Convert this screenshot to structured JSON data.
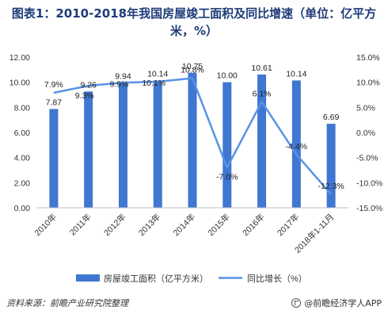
{
  "title": "图表1：2010-2018年我国房屋竣工面积及同比增速（单位：亿平方米，%）",
  "source": "资料来源：前瞻产业研究院整理",
  "brand": "@前瞻经济学人APP",
  "colors": {
    "bar": "#3f77d1",
    "line": "#5a92e6",
    "axis_text": "#333333",
    "title": "#1f3b78"
  },
  "chart_data": {
    "type": "bar",
    "categories": [
      "2010年",
      "2011年",
      "2012年",
      "2013年",
      "2014年",
      "2015年",
      "2016年",
      "2017年",
      "2018年1-11月"
    ],
    "series": [
      {
        "name": "房屋竣工面积（亿平方米）",
        "type": "bar",
        "axis": "left",
        "values": [
          7.87,
          9.26,
          9.94,
          10.14,
          10.75,
          10.0,
          10.61,
          10.14,
          6.69
        ],
        "labels": [
          "7.87",
          "9.26",
          "9.94",
          "10.14",
          "10.75",
          "10.00",
          "10.61",
          "10.14",
          "6.69"
        ]
      },
      {
        "name": "同比增长（%）",
        "type": "line",
        "axis": "right",
        "values": [
          7.9,
          9.3,
          9.9,
          10.1,
          10.8,
          -7.0,
          6.1,
          -4.4,
          -12.3
        ],
        "labels": [
          "7.9%",
          "9.3%",
          "9.9%",
          "10.1%",
          "10.8%",
          "-7.0%",
          "6.1%",
          "-4.4%",
          "-12.3%"
        ]
      }
    ],
    "y_left": {
      "min": 0,
      "max": 12,
      "ticks": [
        "0.00",
        "2.00",
        "4.00",
        "6.00",
        "8.00",
        "10.00",
        "12.00"
      ]
    },
    "y_right": {
      "min": -15,
      "max": 15,
      "ticks": [
        "-15.0%",
        "-10.0%",
        "-5.0%",
        "0.0%",
        "5.0%",
        "10.0%",
        "15.0%"
      ]
    },
    "legend_placement": "bottom",
    "grid": false
  }
}
